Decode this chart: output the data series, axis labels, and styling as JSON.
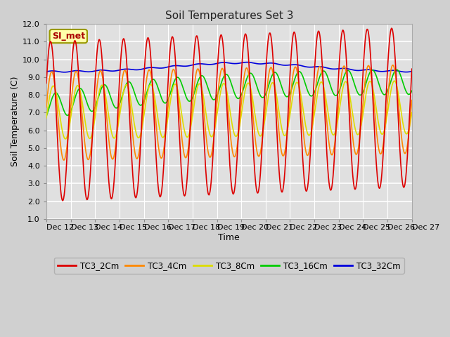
{
  "title": "Soil Temperatures Set 3",
  "xlabel": "Time",
  "ylabel": "Soil Temperature (C)",
  "ylim": [
    1.0,
    12.0
  ],
  "yticks": [
    1.0,
    2.0,
    3.0,
    4.0,
    5.0,
    6.0,
    7.0,
    8.0,
    9.0,
    10.0,
    11.0,
    12.0
  ],
  "colors": {
    "TC3_2Cm": "#dd0000",
    "TC3_4Cm": "#ff8800",
    "TC3_8Cm": "#dddd00",
    "TC3_16Cm": "#00cc00",
    "TC3_32Cm": "#0000dd"
  },
  "legend_labels": [
    "TC3_2Cm",
    "TC3_4Cm",
    "TC3_8Cm",
    "TC3_16Cm",
    "TC3_32Cm"
  ],
  "si_met_label": "SI_met",
  "x_tick_labels": [
    "Dec 12",
    "Dec 13",
    "Dec 14",
    "Dec 15",
    "Dec 16",
    "Dec 17",
    "Dec 18",
    "Dec 19",
    "Dec 20",
    "Dec 21",
    "Dec 22",
    "Dec 23",
    "Dec 24",
    "Dec 25",
    "Dec 26",
    "Dec 27"
  ],
  "n_days": 15,
  "figsize": [
    6.4,
    4.8
  ],
  "dpi": 100,
  "fig_bg": "#d0d0d0",
  "ax_bg": "#e0e0e0"
}
